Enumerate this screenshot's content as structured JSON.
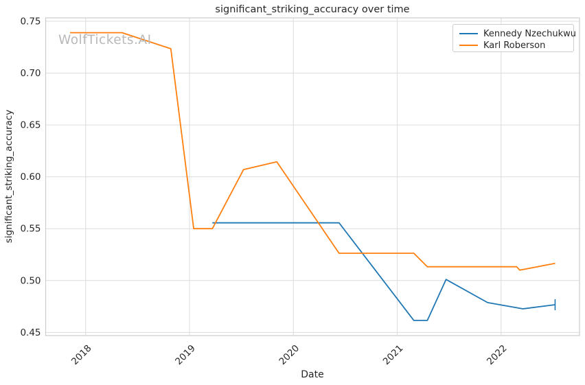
{
  "watermark": "WolfTickets.AI",
  "chart_data": {
    "type": "line",
    "title": "significant_striking_accuracy over time",
    "xlabel": "Date",
    "ylabel": "significant_striking_accuracy",
    "grid": true,
    "legend_position": "upper right",
    "xlim": [
      2017.615,
      2022.755
    ],
    "ylim": [
      0.4469,
      0.7533
    ],
    "xticks": {
      "values": [
        2018,
        2019,
        2020,
        2021,
        2022
      ],
      "labels": [
        "2018",
        "2019",
        "2020",
        "2021",
        "2022"
      ]
    },
    "yticks": {
      "values": [
        0.45,
        0.5,
        0.55,
        0.6,
        0.65,
        0.7,
        0.75
      ],
      "labels": [
        "0.45",
        "0.50",
        "0.55",
        "0.60",
        "0.65",
        "0.70",
        "0.75"
      ]
    },
    "series": [
      {
        "name": "Kennedy Nzechukwu",
        "color": "#1f77b4",
        "end_cap": true,
        "x": [
          2019.22,
          2020.44,
          2021.16,
          2021.29,
          2021.47,
          2021.87,
          2022.21,
          2022.52
        ],
        "y": [
          0.5556,
          0.5556,
          0.4615,
          0.4615,
          0.501,
          0.4787,
          0.4727,
          0.4767
        ]
      },
      {
        "name": "Karl Roberson",
        "color": "#ff7f0e",
        "end_cap": false,
        "x": [
          2017.85,
          2018.35,
          2018.82,
          2019.04,
          2019.22,
          2019.52,
          2019.84,
          2020.44,
          2021.16,
          2021.29,
          2022.15,
          2022.18,
          2022.52
        ],
        "y": [
          0.739,
          0.739,
          0.7235,
          0.55,
          0.55,
          0.607,
          0.6145,
          0.5263,
          0.5263,
          0.5133,
          0.5133,
          0.51,
          0.5165
        ]
      }
    ],
    "style": {
      "grid_color": "#dcdcdc",
      "spine_color": "#cccccc",
      "text_color": "#262626",
      "watermark_color": "#b9b9b9",
      "background": "#ffffff"
    }
  }
}
